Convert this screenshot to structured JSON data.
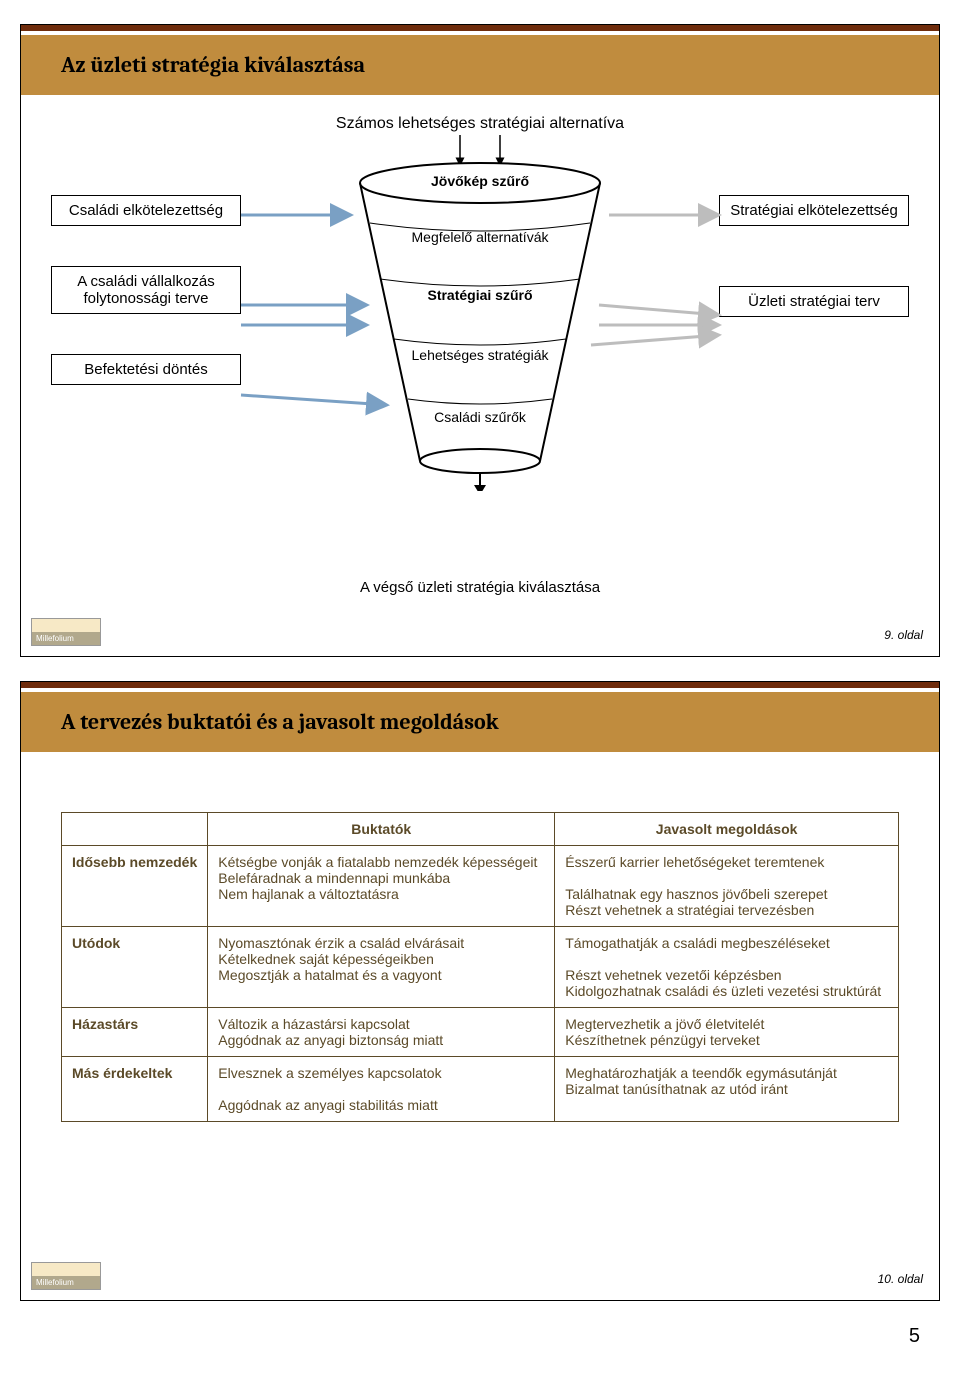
{
  "doc_page_number": "5",
  "colors": {
    "accent_dark": "#6f2c0c",
    "accent_band": "#c08c3e",
    "table_border": "#5b4a28",
    "table_text": "#5b4a28",
    "box_arrow": "#7aa0c4",
    "funnel_arrow": "#bdbdbd"
  },
  "slide1": {
    "title": "Az üzleti stratégia kiválasztása",
    "subtitle": "Számos lehetséges stratégiai alternatíva",
    "left_boxes": [
      "Családi elkötelezettség",
      "A családi vállalkozás folytonossági terve",
      "Befektetési döntés"
    ],
    "right_boxes": [
      "Stratégiai elkötelezettség",
      "Üzleti stratégiai terv"
    ],
    "funnel_rows": [
      "Jövőkép szűrő",
      "Megfelelő alternatívák",
      "Stratégiai szűrő",
      "Lehetséges stratégiák",
      "Családi szűrők"
    ],
    "final_caption": "A végső üzleti stratégia kiválasztása",
    "page_label": "9. oldal"
  },
  "slide2": {
    "title": "A tervezés buktatói és a javasolt megoldások",
    "columns": [
      "",
      "Buktatók",
      "Javasolt megoldások"
    ],
    "rows": [
      {
        "label": "Idősebb nemzedék",
        "pitfalls": "Kétségbe vonják a fiatalabb nemzedék képességeit\nBelefáradnak a mindennapi munkába\nNem hajlanak a változtatásra",
        "solutions": "Ésszerű karrier lehetőségeket teremtenek\n\nTalálhatnak egy hasznos jövőbeli szerepet\nRészt vehetnek a stratégiai tervezésben"
      },
      {
        "label": "Utódok",
        "pitfalls": "Nyomasztónak érzik a család elvárásait\nKételkednek saját képességeikben\nMegosztják a hatalmat és a vagyont",
        "solutions": "Támogathatják a családi megbeszéléseket\n\nRészt vehetnek vezetői képzésben\nKidolgozhatnak családi és üzleti vezetési struktúrát"
      },
      {
        "label": "Házastárs",
        "pitfalls": "Változik a házastársi kapcsolat\nAggódnak az anyagi biztonság miatt",
        "solutions": "Megtervezhetik a jövő életvitelét\nKészíthetnek pénzügyi terveket"
      },
      {
        "label": "Más érdekeltek",
        "pitfalls": "Elvesznek a személyes kapcsolatok\n\nAggódnak az anyagi stabilitás miatt",
        "solutions": "Meghatározhatják a teendők egymásutánját\nBizalmat tanúsíthatnak az utód iránt"
      }
    ],
    "page_label": "10. oldal"
  }
}
